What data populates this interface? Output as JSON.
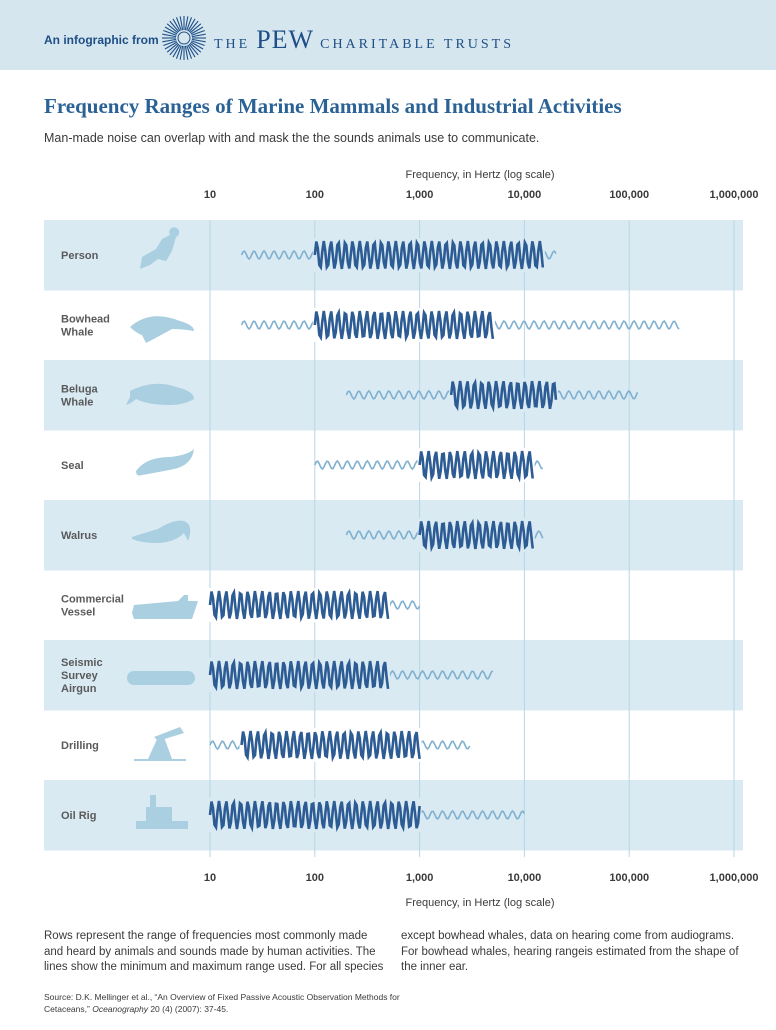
{
  "header": {
    "intro": "An infographic from",
    "brand_pre": "THE",
    "brand_main": "PEW",
    "brand_post": "CHARITABLE TRUSTS"
  },
  "colors": {
    "banner": "#d6e6ef",
    "row_band": "#d9eaf3",
    "strong_wave": "#2d5c94",
    "light_wave": "#7fb0cf",
    "gridline": "#b8d6e6",
    "silhouette": "#a9cfe0",
    "title": "#2b6296"
  },
  "chart_data": {
    "type": "range",
    "title": "Frequency Ranges of Marine Mammals and Industrial Activities",
    "subtitle": "Man-made noise can overlap with and mask the the sounds animals use to communicate.",
    "xlabel": "Frequency, in Hertz (log scale)",
    "xscale": "log",
    "xlim": [
      10,
      1000000
    ],
    "ticks": [
      10,
      100,
      1000,
      10000,
      100000,
      1000000
    ],
    "tick_labels": [
      "10",
      "100",
      "1,000",
      "10,000",
      "100,000",
      "1,000,000"
    ],
    "legend_meaning": {
      "strong": "range most commonly made and heard",
      "light": "minimum and maximum range used"
    },
    "rows": [
      {
        "label": [
          "Person"
        ],
        "icon": "diver-icon",
        "full": [
          20,
          20000
        ],
        "common": [
          100,
          15000
        ]
      },
      {
        "label": [
          "Bowhead",
          "Whale"
        ],
        "icon": "bowhead-whale-icon",
        "full": [
          20,
          300000
        ],
        "common": [
          100,
          5000
        ]
      },
      {
        "label": [
          "Beluga",
          "Whale"
        ],
        "icon": "beluga-whale-icon",
        "full": [
          200,
          120000
        ],
        "common": [
          2000,
          20000
        ]
      },
      {
        "label": [
          "Seal"
        ],
        "icon": "seal-icon",
        "full": [
          100,
          15000
        ],
        "common": [
          1000,
          12000
        ]
      },
      {
        "label": [
          "Walrus"
        ],
        "icon": "walrus-icon",
        "full": [
          200,
          15000
        ],
        "common": [
          1000,
          12000
        ]
      },
      {
        "label": [
          "Commercial",
          "Vessel"
        ],
        "icon": "ship-icon",
        "full": [
          10,
          1000
        ],
        "common": [
          10,
          500
        ]
      },
      {
        "label": [
          "Seismic",
          "Survey",
          "Airgun"
        ],
        "icon": "airgun-icon",
        "full": [
          10,
          5000
        ],
        "common": [
          10,
          500
        ]
      },
      {
        "label": [
          "Drilling"
        ],
        "icon": "drilling-icon",
        "full": [
          10,
          3000
        ],
        "common": [
          20,
          1000
        ]
      },
      {
        "label": [
          "Oil Rig"
        ],
        "icon": "oil-rig-icon",
        "full": [
          10,
          10000
        ],
        "common": [
          10,
          1000
        ]
      }
    ]
  },
  "notes": "Rows represent the range of frequencies most commonly made and heard by animals and sounds made by human activities. The lines show the minimum and maximum range used. For all species except bowhead whales, data on hearing come from audiograms. For bowhead whales, hearing rangeis estimated from the shape of the inner ear.",
  "source": {
    "prefix": "Source:  D.K. Mellinger et al., “An Overview of Fixed Passive Acoustic Observation Methods for Cetaceans,” ",
    "journal": "Oceanography",
    "suffix": " 20 (4) (2007): 37-45."
  }
}
